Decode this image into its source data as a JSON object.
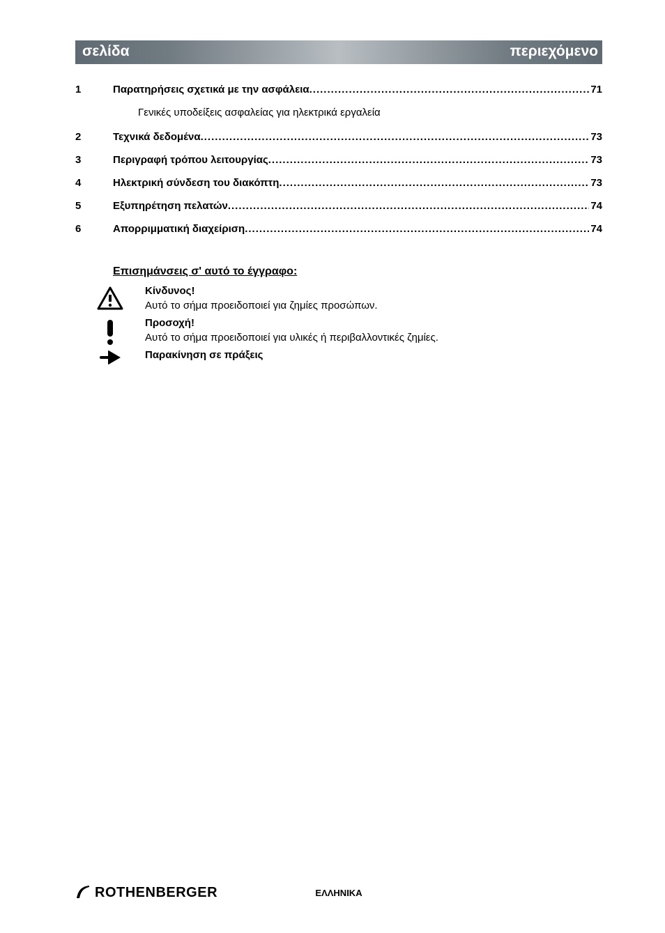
{
  "header": {
    "left_label": "σελίδα",
    "right_label": "περιεχόμενο",
    "bar_dark": "#5f6a72",
    "bar_light": "#9ea7ad",
    "text_color": "#ffffff",
    "font_size": 21
  },
  "toc": {
    "font_size": 15,
    "items": [
      {
        "num": "1",
        "title": "Παρατηρήσεις σχετικά με την ασφάλεια",
        "page": "71",
        "sub": "Γενικές υποδείξεις ασφαλείας για ηλεκτρικά εργαλεία"
      },
      {
        "num": "2",
        "title": "Τεχνικά δεδομένα",
        "page": "73"
      },
      {
        "num": "3",
        "title": "Περιγραφή τρόπου λειτουργίας",
        "page": "73"
      },
      {
        "num": "4",
        "title": "Ηλεκτρική σύνδεση του διακόπτη",
        "page": "73"
      },
      {
        "num": "5",
        "title": "Εξυπηρέτηση πελατών",
        "page": "74"
      },
      {
        "num": "6",
        "title": "Απορριμματική διαχείριση",
        "page": "74"
      }
    ]
  },
  "notes": {
    "section_title": "Επισημάνσεις σ' αυτό το έγγραφο:",
    "font_size": 15,
    "entries": [
      {
        "icon": "warning-triangle-icon",
        "heading": "Κίνδυνος!",
        "body": "Αυτό το σήμα προειδοποιεί για ζημίες προσώπων."
      },
      {
        "icon": "exclamation-icon",
        "heading": "Προσοχή!",
        "body": "Αυτό το σήμα προειδοποιεί για υλικές ή περιβαλλοντικές ζημίες."
      },
      {
        "icon": "arrow-right-icon",
        "heading": "Παρακίνηση σε πράξεις",
        "body": ""
      }
    ]
  },
  "footer": {
    "brand": "ROTHENBERGER",
    "brand_font_size": 20,
    "lang": "ΕΛΛΗΝΙΚΑ",
    "lang_font_size": 13
  },
  "colors": {
    "text": "#000000",
    "background": "#ffffff"
  }
}
